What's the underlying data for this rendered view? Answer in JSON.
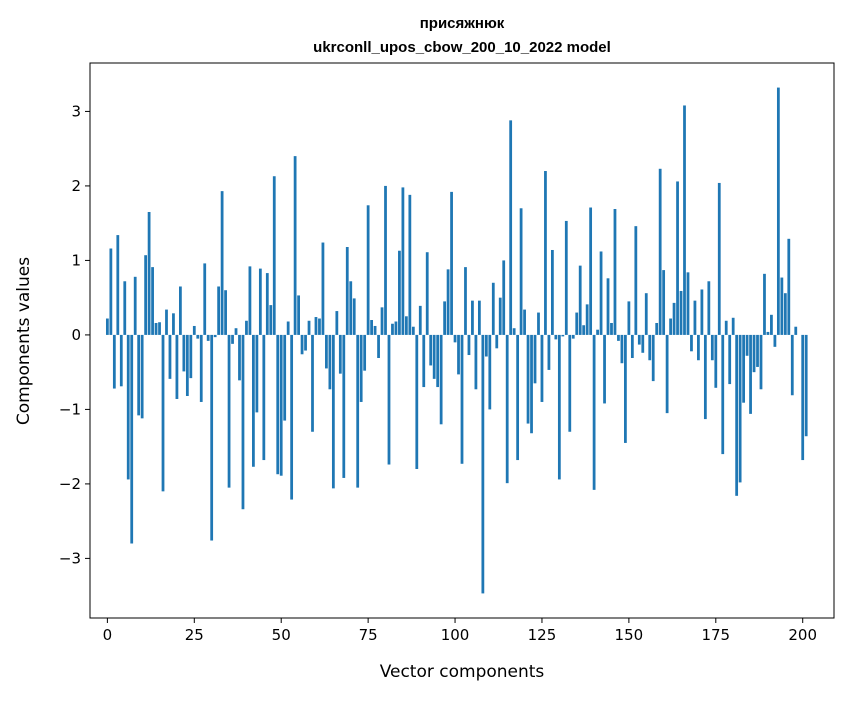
{
  "chart_data": {
    "type": "bar",
    "title_line1": "присяжнюк",
    "title_line2": "ukrconll_upos_cbow_200_10_2022 model",
    "xlabel": "Vector components",
    "ylabel": "Components values",
    "xlim": [
      -5,
      209
    ],
    "ylim": [
      -3.8,
      3.65
    ],
    "xticks": [
      0,
      25,
      50,
      75,
      100,
      125,
      150,
      175,
      200
    ],
    "yticks": [
      -3,
      -2,
      -1,
      0,
      1,
      2,
      3
    ],
    "bar_color": "#1f77b4",
    "values": [
      0.22,
      1.16,
      -0.72,
      1.34,
      -0.69,
      0.72,
      -1.94,
      -2.8,
      0.78,
      -1.08,
      -1.12,
      1.07,
      1.65,
      0.91,
      0.16,
      0.17,
      -2.1,
      0.34,
      -0.59,
      0.29,
      -0.86,
      0.65,
      -0.49,
      -0.82,
      -0.58,
      0.12,
      -0.05,
      -0.9,
      0.96,
      -0.08,
      -2.76,
      -0.03,
      0.65,
      1.93,
      0.6,
      -2.05,
      -0.12,
      0.09,
      -0.61,
      -2.34,
      0.19,
      0.92,
      -1.77,
      -1.04,
      0.89,
      -1.68,
      0.83,
      0.4,
      2.13,
      -1.87,
      -1.89,
      -1.15,
      0.18,
      -2.21,
      2.4,
      0.53,
      -0.26,
      -0.21,
      0.19,
      -1.3,
      0.24,
      0.22,
      1.24,
      -0.45,
      -0.73,
      -2.06,
      0.32,
      -0.52,
      -1.92,
      1.18,
      0.72,
      0.49,
      -2.05,
      -0.9,
      -0.48,
      1.74,
      0.2,
      0.12,
      -0.31,
      0.37,
      2.0,
      -1.74,
      0.15,
      0.18,
      1.13,
      1.98,
      0.25,
      1.88,
      0.11,
      -1.8,
      0.39,
      -0.7,
      1.11,
      -0.41,
      -0.59,
      -0.7,
      -1.2,
      0.45,
      0.88,
      1.92,
      -0.1,
      -0.53,
      -1.73,
      0.91,
      -0.27,
      0.46,
      -0.73,
      0.46,
      -3.47,
      -0.29,
      -1.0,
      0.7,
      -0.18,
      0.5,
      1.0,
      -1.99,
      2.88,
      0.09,
      -1.68,
      1.7,
      0.34,
      -1.19,
      -1.32,
      -0.65,
      0.3,
      -0.9,
      2.2,
      -0.47,
      1.14,
      -0.06,
      -1.94,
      -0.02,
      1.53,
      -1.3,
      -0.05,
      0.3,
      0.93,
      0.13,
      0.41,
      1.71,
      -2.08,
      0.07,
      1.12,
      -0.92,
      0.76,
      0.16,
      1.69,
      -0.08,
      -0.38,
      -1.45,
      0.45,
      -0.31,
      1.46,
      -0.13,
      -0.24,
      0.56,
      -0.34,
      -0.62,
      0.16,
      2.23,
      0.87,
      -1.05,
      0.22,
      0.43,
      2.06,
      0.59,
      3.08,
      0.84,
      -0.22,
      0.46,
      -0.34,
      0.61,
      -1.13,
      0.72,
      -0.34,
      -0.71,
      2.04,
      -1.6,
      0.19,
      -0.66,
      0.23,
      -2.16,
      -1.98,
      -0.91,
      -0.28,
      -1.06,
      -0.5,
      -0.43,
      -0.73,
      0.82,
      0.04,
      0.27,
      -0.16,
      3.32,
      0.77,
      0.56,
      1.29,
      -0.81,
      0.11,
      0.0,
      -1.68,
      -1.36
    ]
  }
}
